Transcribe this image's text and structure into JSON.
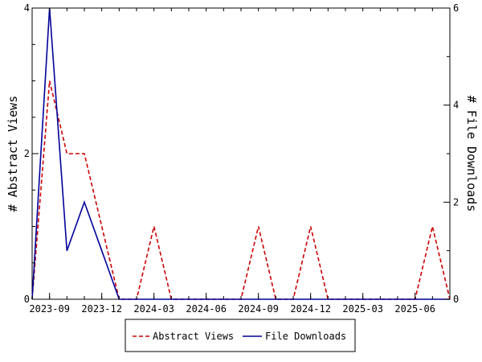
{
  "chart_data": {
    "type": "line",
    "x": [
      "2023-08",
      "2023-09",
      "2023-10",
      "2023-11",
      "2023-12",
      "2024-01",
      "2024-02",
      "2024-03",
      "2024-04",
      "2024-05",
      "2024-06",
      "2024-07",
      "2024-08",
      "2024-09",
      "2024-10",
      "2024-11",
      "2024-12",
      "2025-01",
      "2025-02",
      "2025-03",
      "2025-04",
      "2025-05",
      "2025-06",
      "2025-07",
      "2025-08"
    ],
    "x_ticks": [
      "2023-09",
      "2023-12",
      "2024-03",
      "2024-06",
      "2024-09",
      "2024-12",
      "2025-03",
      "2025-06"
    ],
    "y_left": {
      "label": "# Abstract Views",
      "range": [
        0,
        4
      ],
      "ticks": [
        "0",
        "2",
        "4"
      ]
    },
    "y_right": {
      "label": "# File Downloads",
      "range": [
        0,
        6
      ],
      "ticks": [
        "0",
        "2",
        "4",
        "6"
      ]
    },
    "series": [
      {
        "name": "Abstract Views",
        "axis": "left",
        "color": "#cc0000",
        "dash": "dashed",
        "values": [
          0,
          3,
          2,
          2,
          1,
          0,
          0,
          1,
          0,
          0,
          0,
          0,
          0,
          1,
          0,
          0,
          1,
          0,
          0,
          0,
          0,
          0,
          0,
          1,
          0
        ]
      },
      {
        "name": "File Downloads",
        "axis": "right",
        "color": "#000099",
        "dash": "solid",
        "values": [
          0,
          6,
          1,
          2,
          1,
          0,
          0,
          0,
          0,
          0,
          0,
          0,
          0,
          0,
          0,
          0,
          0,
          0,
          0,
          0,
          0,
          0,
          0,
          0,
          0
        ]
      }
    ],
    "legend": {
      "placement": "bottom"
    },
    "grid": false
  }
}
